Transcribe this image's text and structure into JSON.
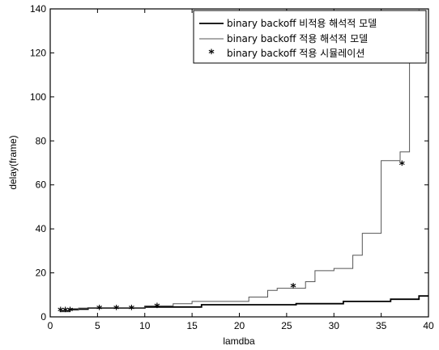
{
  "chart_data": {
    "type": "line",
    "title": "",
    "xlabel": "lamdba",
    "ylabel": "delay(frame)",
    "xlim": [
      0,
      40
    ],
    "ylim": [
      0,
      140
    ],
    "xticks": [
      0,
      5,
      10,
      15,
      20,
      25,
      30,
      35,
      40
    ],
    "yticks": [
      0,
      20,
      40,
      60,
      80,
      100,
      120,
      140
    ],
    "grid": false,
    "legend_position": "top-right",
    "series": [
      {
        "name": "binary backoff 비적용 해석적 모델",
        "style": "line",
        "color": "#000000",
        "x": [
          1,
          2,
          2,
          4,
          4,
          10,
          10,
          16,
          16,
          26,
          26,
          31,
          31,
          36,
          36,
          39,
          39,
          40
        ],
        "y": [
          2.5,
          2.5,
          3.5,
          3.5,
          4,
          4,
          4.5,
          4.5,
          5.5,
          5.5,
          6,
          6,
          7,
          7,
          8,
          8,
          9.5,
          9.5
        ]
      },
      {
        "name": "binary backoff 적용 해석적 모델",
        "style": "line",
        "color": "#555555",
        "x": [
          1,
          2,
          2,
          3,
          3,
          10,
          10,
          13,
          13,
          15,
          15,
          21,
          21,
          23,
          23,
          24,
          24,
          27,
          27,
          28,
          28,
          30,
          30,
          32,
          32,
          33,
          33,
          35,
          35,
          37,
          37,
          38,
          38,
          39,
          39
        ],
        "y": [
          2.5,
          2.5,
          3,
          3,
          4,
          4,
          5,
          5,
          6,
          6,
          7,
          7,
          9,
          9,
          12,
          12,
          13,
          13,
          16,
          16,
          21,
          21,
          22,
          22,
          28,
          28,
          38,
          38,
          71,
          71,
          75,
          75,
          120,
          120,
          140
        ]
      },
      {
        "name": "binary backoff 적용 시뮬레이션",
        "style": "marker",
        "marker": "*",
        "color": "#000000",
        "x": [
          1.1,
          1.6,
          2.1,
          5.2,
          7,
          8.6,
          11.3,
          25.7,
          37.2
        ],
        "y": [
          2.5,
          2.5,
          2.5,
          3.5,
          3.5,
          3.5,
          4.5,
          13.5,
          69
        ]
      }
    ]
  }
}
